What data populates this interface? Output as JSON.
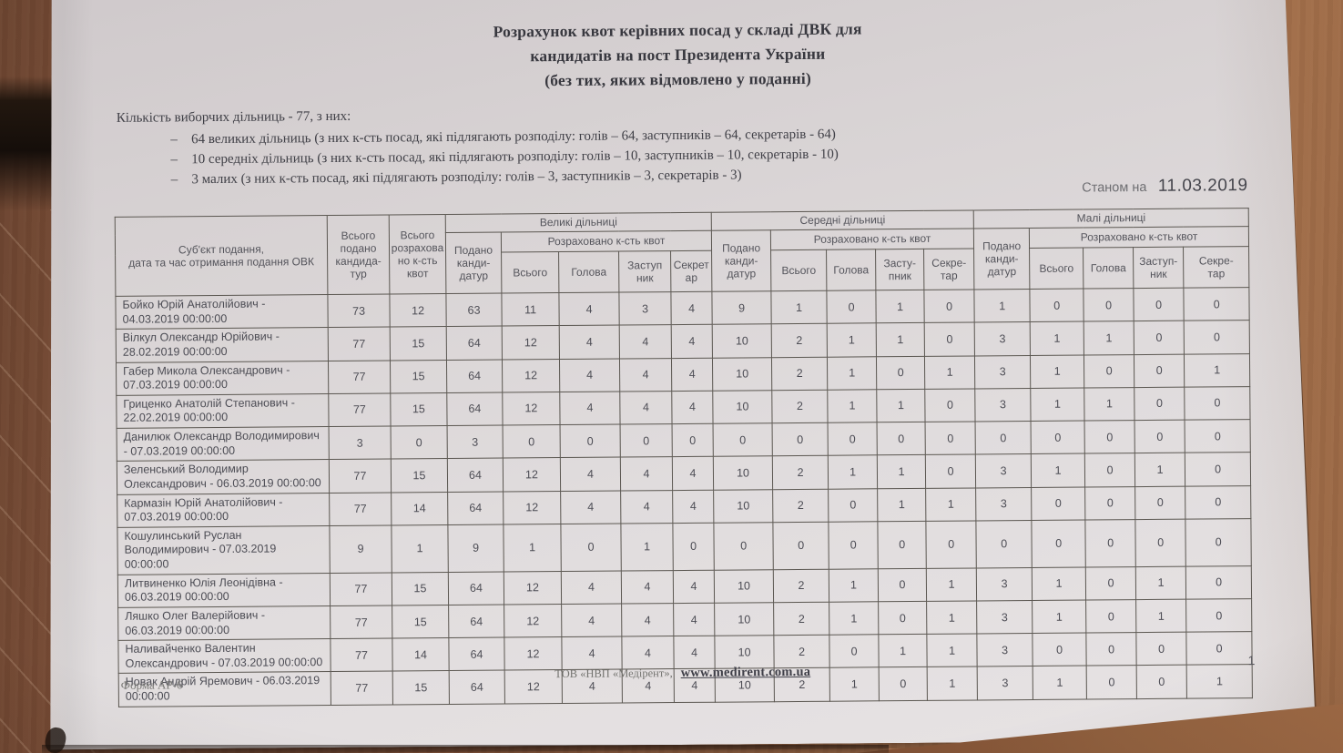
{
  "document": {
    "title_lines": [
      "Розрахунок квот керівних посад у складі ДВК для",
      "кандидатів на пост Президента України",
      "(без тих, яких відмовлено у поданні)"
    ],
    "intro": {
      "lead": "Кількість виборчих дільниць - 77, з них:",
      "dash": "–",
      "items": [
        "64 великих дільниць (з них к-сть посад, які підлягають розподілу: голів – 64, заступників – 64, секретарів - 64)",
        "10 середніх  дільниць (з них к-сть посад, які підлягають розподілу:  голів – 10, заступників – 10, секретарів - 10)",
        "3 малих (з них к-сть посад, які підлягають розподілу:  голів – 3, заступників – 3, секретарів - 3)"
      ]
    },
    "as_of_label": "Станом на",
    "as_of_date": "11.03.2019",
    "footer": {
      "form_code": "Форма АР-6",
      "publisher": "ТОВ «НВП «Медірент»,",
      "website": "www.medirent.com.ua",
      "page_number": "1"
    }
  },
  "table": {
    "header": {
      "subject": "Суб'єкт подання,\nдата та час отримання подання ОВК",
      "total_submitted": "Всього\nподано\nкандида-\nтур",
      "total_quotas": "Всього\nрозрахова\nно к-сть\nквот",
      "groups": [
        {
          "label": "Великі дільниці",
          "submitted": "Подано\nканди-\nдатур",
          "calculated": "Розраховано к-сть квот",
          "cols": [
            "Всього",
            "Голова",
            "Заступ\nник",
            "Секрет\nар"
          ]
        },
        {
          "label": "Середні дільниці",
          "submitted": "Подано\nканди-\nдатур",
          "calculated": "Розраховано к-сть квот",
          "cols": [
            "Всього",
            "Голова",
            "Засту-\nпник",
            "Секре-\nтар"
          ]
        },
        {
          "label": "Малі дільниці",
          "submitted": "Подано\nканди-\nдатур",
          "calculated": "Розраховано к-сть квот",
          "cols": [
            "Всього",
            "Голова",
            "Заступ-\nник",
            "Секре-\nтар"
          ]
        }
      ]
    },
    "rows": [
      {
        "subject": "Бойко Юрій Анатолійович - 04.03.2019 00:00:00",
        "values": [
          73,
          12,
          63,
          11,
          4,
          3,
          4,
          9,
          1,
          0,
          1,
          0,
          1,
          0,
          0,
          0,
          0
        ]
      },
      {
        "subject": "Вілкул Олександр Юрійович - 28.02.2019 00:00:00",
        "values": [
          77,
          15,
          64,
          12,
          4,
          4,
          4,
          10,
          2,
          1,
          1,
          0,
          3,
          1,
          1,
          0,
          0
        ]
      },
      {
        "subject": "Габер Микола Олександрович - 07.03.2019 00:00:00",
        "values": [
          77,
          15,
          64,
          12,
          4,
          4,
          4,
          10,
          2,
          1,
          0,
          1,
          3,
          1,
          0,
          0,
          1
        ]
      },
      {
        "subject": "Гриценко Анатолій Степанович - 22.02.2019 00:00:00",
        "values": [
          77,
          15,
          64,
          12,
          4,
          4,
          4,
          10,
          2,
          1,
          1,
          0,
          3,
          1,
          1,
          0,
          0
        ]
      },
      {
        "subject": "Данилюк Олександр Володимирович - 07.03.2019 00:00:00",
        "values": [
          3,
          0,
          3,
          0,
          0,
          0,
          0,
          0,
          0,
          0,
          0,
          0,
          0,
          0,
          0,
          0,
          0
        ]
      },
      {
        "subject": "Зеленський Володимир Олександрович - 06.03.2019 00:00:00",
        "values": [
          77,
          15,
          64,
          12,
          4,
          4,
          4,
          10,
          2,
          1,
          1,
          0,
          3,
          1,
          0,
          1,
          0
        ]
      },
      {
        "subject": "Кармазін Юрій Анатолійович - 07.03.2019 00:00:00",
        "values": [
          77,
          14,
          64,
          12,
          4,
          4,
          4,
          10,
          2,
          0,
          1,
          1,
          3,
          0,
          0,
          0,
          0
        ]
      },
      {
        "subject": "Кошулинський Руслан Володимирович - 07.03.2019 00:00:00",
        "values": [
          9,
          1,
          9,
          1,
          0,
          1,
          0,
          0,
          0,
          0,
          0,
          0,
          0,
          0,
          0,
          0,
          0
        ]
      },
      {
        "subject": "Литвиненко Юлія Леонідівна - 06.03.2019 00:00:00",
        "values": [
          77,
          15,
          64,
          12,
          4,
          4,
          4,
          10,
          2,
          1,
          0,
          1,
          3,
          1,
          0,
          1,
          0
        ]
      },
      {
        "subject": "Ляшко Олег Валерійович - 06.03.2019 00:00:00",
        "values": [
          77,
          15,
          64,
          12,
          4,
          4,
          4,
          10,
          2,
          1,
          0,
          1,
          3,
          1,
          0,
          1,
          0
        ]
      },
      {
        "subject": "Наливайченко Валентин Олександрович - 07.03.2019 00:00:00",
        "values": [
          77,
          14,
          64,
          12,
          4,
          4,
          4,
          10,
          2,
          0,
          1,
          1,
          3,
          0,
          0,
          0,
          0
        ]
      },
      {
        "subject": "Новак Андрій Яремович - 06.03.2019 00:00:00",
        "values": [
          77,
          15,
          64,
          12,
          4,
          4,
          4,
          10,
          2,
          1,
          0,
          1,
          3,
          1,
          0,
          0,
          1
        ]
      }
    ]
  },
  "colors": {
    "paper": "#dcd8d9",
    "wood_dark": "#6b4430",
    "wood_light": "#aa7650",
    "table_border": "#5b5751",
    "text": "#4d4d55"
  }
}
